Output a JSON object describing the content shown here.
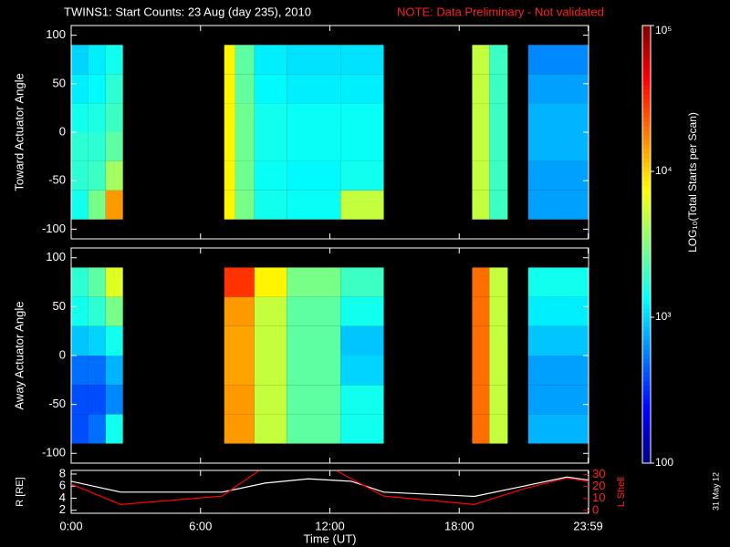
{
  "chart_data": [
    {
      "type": "heatmap",
      "title": "TWINS1: Start Counts: 23 Aug (day 235), 2010",
      "note": "NOTE: Data Preliminary - Not validated",
      "ylabel": "Toward Actuator Angle",
      "ylim": [
        -110,
        110
      ],
      "yticks": [
        -100,
        -50,
        0,
        50,
        100
      ],
      "xlim": [
        0,
        24
      ],
      "angle_bins": [
        -90,
        -60,
        -30,
        0,
        30,
        60,
        90
      ],
      "blocks": [
        {
          "t": [
            0,
            0.8
          ],
          "values": [
            1500,
            1800,
            1800,
            1500,
            1200,
            1000
          ]
        },
        {
          "t": [
            0.8,
            1.6
          ],
          "values": [
            3000,
            2000,
            1800,
            1600,
            1300,
            1200
          ]
        },
        {
          "t": [
            1.6,
            2.4
          ],
          "values": [
            15000,
            4000,
            2500,
            2000,
            1800,
            1500
          ]
        },
        {
          "t": [
            7.1,
            7.6
          ],
          "values": [
            8000,
            8000,
            8000,
            8000,
            8000,
            8000
          ]
        },
        {
          "t": [
            7.6,
            8.5
          ],
          "values": [
            3000,
            2800,
            2800,
            2800,
            2600,
            2500
          ]
        },
        {
          "t": [
            8.5,
            10
          ],
          "values": [
            1500,
            1400,
            1500,
            1500,
            1300,
            1200
          ]
        },
        {
          "t": [
            10,
            12.5
          ],
          "values": [
            1400,
            1300,
            1400,
            1400,
            1200,
            1100
          ]
        },
        {
          "t": [
            12.5,
            14.5
          ],
          "values": [
            5000,
            1500,
            1400,
            1400,
            1200,
            1100
          ]
        },
        {
          "t": [
            18.6,
            19.4
          ],
          "values": [
            5000,
            5000,
            5000,
            5000,
            5000,
            5000
          ]
        },
        {
          "t": [
            19.4,
            20.25
          ],
          "values": [
            2000,
            2000,
            2000,
            2000,
            2000,
            2000
          ]
        },
        {
          "t": [
            21.2,
            24
          ],
          "values": [
            700,
            700,
            800,
            800,
            700,
            600
          ]
        }
      ]
    },
    {
      "type": "heatmap",
      "ylabel": "Away Actuator Angle",
      "ylim": [
        -110,
        110
      ],
      "yticks": [
        -100,
        -50,
        0,
        50,
        100
      ],
      "xlim": [
        0,
        24
      ],
      "angle_bins": [
        -90,
        -60,
        -30,
        0,
        30,
        60,
        90
      ],
      "blocks": [
        {
          "t": [
            0,
            0.8
          ],
          "values": [
            400,
            400,
            500,
            900,
            1500,
            1800
          ]
        },
        {
          "t": [
            0.8,
            1.6
          ],
          "values": [
            500,
            400,
            500,
            1000,
            1800,
            2500
          ]
        },
        {
          "t": [
            1.6,
            2.4
          ],
          "values": [
            1500,
            600,
            800,
            1500,
            3000,
            6000
          ]
        },
        {
          "t": [
            7.1,
            8.5
          ],
          "values": [
            15000,
            15000,
            14000,
            14000,
            15000,
            30000
          ]
        },
        {
          "t": [
            8.5,
            10
          ],
          "values": [
            5000,
            5000,
            5000,
            5000,
            5000,
            8000
          ]
        },
        {
          "t": [
            10,
            12.5
          ],
          "values": [
            2500,
            2500,
            2500,
            2500,
            2500,
            3000
          ]
        },
        {
          "t": [
            12.5,
            14.5
          ],
          "values": [
            1500,
            1500,
            1000,
            900,
            1500,
            2000
          ]
        },
        {
          "t": [
            18.6,
            19.4
          ],
          "values": [
            20000,
            20000,
            20000,
            20000,
            20000,
            20000
          ]
        },
        {
          "t": [
            19.4,
            20.25
          ],
          "values": [
            5000,
            5000,
            5000,
            5000,
            5000,
            5000
          ]
        },
        {
          "t": [
            21.2,
            24
          ],
          "values": [
            800,
            700,
            700,
            900,
            1200,
            1500
          ]
        }
      ]
    },
    {
      "type": "line",
      "ylabel": "R [RE]",
      "ylim": [
        1.5,
        8.6
      ],
      "yticks": [
        2,
        4,
        6,
        8
      ],
      "y2label": "L Shell",
      "y2lim": [
        -2.3,
        33.3
      ],
      "y2ticks": [
        0,
        10,
        20,
        30
      ],
      "xlabel": "Time (UT)",
      "xlim": [
        0,
        24
      ],
      "xticks": [
        {
          "value": 0,
          "label": "0:00"
        },
        {
          "value": 6,
          "label": "6:00"
        },
        {
          "value": 12,
          "label": "12:00"
        },
        {
          "value": 18,
          "label": "18:00"
        },
        {
          "value": 23.98,
          "label": "23:59"
        }
      ],
      "series": [
        {
          "color": "#ffffff",
          "x": [
            0,
            2.3,
            7,
            9,
            11,
            13,
            14.5,
            18.7,
            21,
            23,
            24
          ],
          "values": [
            6.8,
            5,
            5,
            6.5,
            7.2,
            6.8,
            5,
            4.3,
            6,
            7.5,
            7
          ]
        },
        {
          "color": "#ff0000",
          "axis": "y2",
          "x": [
            0,
            2.3,
            7,
            8.7,
            10.5,
            12.3,
            14.5,
            18.7,
            21,
            23,
            24
          ],
          "values": [
            22,
            5,
            12,
            33,
            null,
            33,
            12,
            5,
            18,
            27,
            24
          ]
        }
      ]
    }
  ],
  "colorbar": {
    "label": "LOG₁₀(Total Starts per Scan)",
    "log": true,
    "colormap": "jet",
    "zlim": [
      100,
      100000
    ],
    "zticks": [
      {
        "value": 100,
        "label": "100"
      },
      {
        "value": 1000,
        "label": "10³"
      },
      {
        "value": 10000,
        "label": "10⁴"
      },
      {
        "value": 100000,
        "label": "10⁵"
      }
    ]
  },
  "stamp": "31 May 12"
}
